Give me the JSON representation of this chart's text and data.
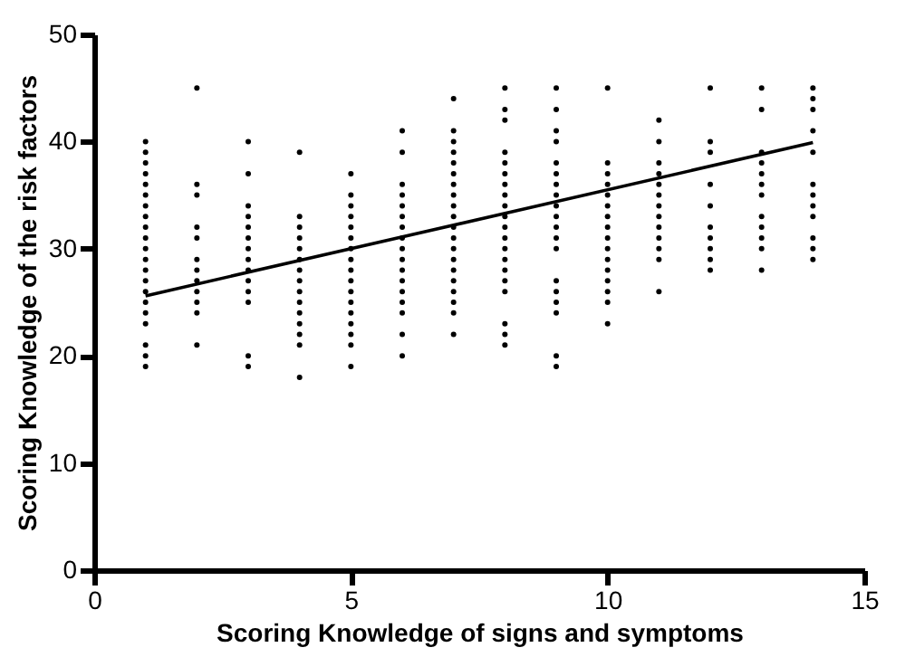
{
  "chart_data": {
    "type": "scatter",
    "xlabel": "Scoring Knowledge of signs and symptoms",
    "ylabel": "Scoring Knowledge of the risk factors",
    "xlim": [
      0,
      15
    ],
    "xticks": [
      0,
      5,
      10,
      15
    ],
    "ylim": [
      0,
      50
    ],
    "yticks": [
      0,
      10,
      20,
      30,
      40,
      50
    ],
    "grid": false,
    "marker": "circle",
    "series": [
      {
        "color": "#000000",
        "x": [
          1,
          1,
          1,
          1,
          1,
          1,
          1,
          1,
          1,
          1,
          1,
          1,
          1,
          1,
          1,
          1,
          1,
          1,
          1,
          1,
          1,
          2,
          2,
          2,
          2,
          2,
          2,
          2,
          2,
          2,
          2,
          2,
          2,
          3,
          3,
          3,
          3,
          3,
          3,
          3,
          3,
          3,
          3,
          3,
          3,
          3,
          3,
          4,
          4,
          4,
          4,
          4,
          4,
          4,
          4,
          4,
          4,
          4,
          4,
          4,
          4,
          4,
          5,
          5,
          5,
          5,
          5,
          5,
          5,
          5,
          5,
          5,
          5,
          5,
          5,
          5,
          5,
          5,
          5,
          6,
          6,
          6,
          6,
          6,
          6,
          6,
          6,
          6,
          6,
          6,
          6,
          6,
          6,
          6,
          6,
          6,
          7,
          7,
          7,
          7,
          7,
          7,
          7,
          7,
          7,
          7,
          7,
          7,
          7,
          7,
          7,
          7,
          7,
          7,
          7,
          7,
          8,
          8,
          8,
          8,
          8,
          8,
          8,
          8,
          8,
          8,
          8,
          8,
          8,
          8,
          8,
          8,
          8,
          8,
          8,
          8,
          9,
          9,
          9,
          9,
          9,
          9,
          9,
          9,
          9,
          9,
          9,
          9,
          9,
          9,
          9,
          9,
          9,
          9,
          9,
          10,
          10,
          10,
          10,
          10,
          10,
          10,
          10,
          10,
          10,
          10,
          10,
          10,
          10,
          10,
          10,
          11,
          11,
          11,
          11,
          11,
          11,
          11,
          11,
          11,
          11,
          11,
          11,
          11,
          12,
          12,
          12,
          12,
          12,
          12,
          12,
          12,
          12,
          12,
          13,
          13,
          13,
          13,
          13,
          13,
          13,
          13,
          13,
          13,
          13,
          13,
          14,
          14,
          14,
          14,
          14,
          14,
          14,
          14,
          14,
          14,
          14,
          14
        ],
        "values": [
          19,
          20,
          21,
          23,
          24,
          25,
          26,
          27,
          28,
          29,
          30,
          31,
          32,
          33,
          34,
          35,
          36,
          37,
          38,
          39,
          40,
          21,
          24,
          25,
          26,
          27,
          28,
          29,
          31,
          32,
          35,
          36,
          45,
          19,
          20,
          25,
          26,
          27,
          28,
          29,
          30,
          31,
          32,
          33,
          34,
          37,
          40,
          18,
          21,
          22,
          23,
          24,
          25,
          26,
          27,
          28,
          29,
          30,
          31,
          32,
          33,
          39,
          19,
          21,
          22,
          23,
          24,
          25,
          26,
          27,
          28,
          29,
          30,
          31,
          32,
          33,
          34,
          35,
          37,
          20,
          22,
          24,
          25,
          26,
          27,
          28,
          29,
          30,
          31,
          32,
          33,
          34,
          35,
          36,
          39,
          41,
          22,
          24,
          25,
          26,
          27,
          28,
          29,
          30,
          31,
          32,
          33,
          34,
          35,
          36,
          37,
          38,
          39,
          40,
          41,
          44,
          21,
          22,
          23,
          26,
          27,
          28,
          29,
          30,
          31,
          32,
          33,
          34,
          35,
          36,
          37,
          38,
          39,
          42,
          43,
          45,
          19,
          20,
          24,
          25,
          26,
          27,
          30,
          31,
          32,
          33,
          34,
          35,
          36,
          37,
          38,
          40,
          41,
          43,
          45,
          23,
          25,
          26,
          27,
          28,
          29,
          30,
          31,
          32,
          33,
          34,
          35,
          36,
          37,
          38,
          45,
          26,
          29,
          30,
          31,
          32,
          33,
          34,
          35,
          36,
          37,
          38,
          40,
          42,
          28,
          29,
          30,
          31,
          32,
          34,
          36,
          39,
          40,
          45,
          28,
          30,
          31,
          32,
          33,
          35,
          36,
          37,
          38,
          39,
          43,
          45,
          29,
          30,
          31,
          33,
          34,
          35,
          36,
          39,
          41,
          43,
          44,
          45
        ]
      },
      {
        "type": "line",
        "color": "#000000",
        "line_style": "solid",
        "marker": "none",
        "x": [
          1,
          14
        ],
        "values": [
          25.6,
          39.9
        ]
      }
    ]
  }
}
